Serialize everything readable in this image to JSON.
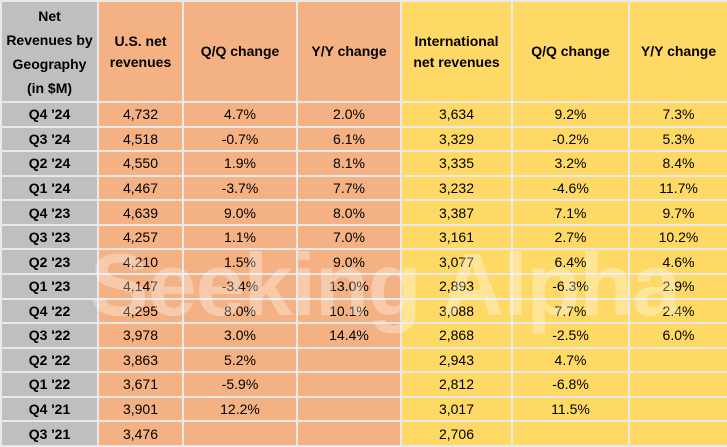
{
  "chart_data": {
    "type": "table",
    "title": "Net\nRevenues by\nGeography\n(in $M)",
    "columns": {
      "us_revenues": "U.S. net revenues",
      "us_qq": "Q/Q change",
      "us_yy": "Y/Y change",
      "intl_revenues": "International net revenues",
      "intl_qq": "Q/Q change",
      "intl_yy": "Y/Y change"
    },
    "rows": [
      {
        "quarter": "Q4 '24",
        "us_rev": "4,732",
        "us_qq": "4.7%",
        "us_yy": "2.0%",
        "intl_rev": "3,634",
        "intl_qq": "9.2%",
        "intl_yy": "7.3%"
      },
      {
        "quarter": "Q3 '24",
        "us_rev": "4,518",
        "us_qq": "-0.7%",
        "us_yy": "6.1%",
        "intl_rev": "3,329",
        "intl_qq": "-0.2%",
        "intl_yy": "5.3%"
      },
      {
        "quarter": "Q2 '24",
        "us_rev": "4,550",
        "us_qq": "1.9%",
        "us_yy": "8.1%",
        "intl_rev": "3,335",
        "intl_qq": "3.2%",
        "intl_yy": "8.4%"
      },
      {
        "quarter": "Q1 '24",
        "us_rev": "4,467",
        "us_qq": "-3.7%",
        "us_yy": "7.7%",
        "intl_rev": "3,232",
        "intl_qq": "-4.6%",
        "intl_yy": "11.7%"
      },
      {
        "quarter": "Q4 '23",
        "us_rev": "4,639",
        "us_qq": "9.0%",
        "us_yy": "8.0%",
        "intl_rev": "3,387",
        "intl_qq": "7.1%",
        "intl_yy": "9.7%"
      },
      {
        "quarter": "Q3 '23",
        "us_rev": "4,257",
        "us_qq": "1.1%",
        "us_yy": "7.0%",
        "intl_rev": "3,161",
        "intl_qq": "2.7%",
        "intl_yy": "10.2%"
      },
      {
        "quarter": "Q2 '23",
        "us_rev": "4,210",
        "us_qq": "1.5%",
        "us_yy": "9.0%",
        "intl_rev": "3,077",
        "intl_qq": "6.4%",
        "intl_yy": "4.6%"
      },
      {
        "quarter": "Q1 '23",
        "us_rev": "4,147",
        "us_qq": "-3.4%",
        "us_yy": "13.0%",
        "intl_rev": "2,893",
        "intl_qq": "-6.3%",
        "intl_yy": "2.9%"
      },
      {
        "quarter": "Q4 '22",
        "us_rev": "4,295",
        "us_qq": "8.0%",
        "us_yy": "10.1%",
        "intl_rev": "3,088",
        "intl_qq": "7.7%",
        "intl_yy": "2.4%"
      },
      {
        "quarter": "Q3 '22",
        "us_rev": "3,978",
        "us_qq": "3.0%",
        "us_yy": "14.4%",
        "intl_rev": "2,868",
        "intl_qq": "-2.5%",
        "intl_yy": "6.0%"
      },
      {
        "quarter": "Q2 '22",
        "us_rev": "3,863",
        "us_qq": "5.2%",
        "us_yy": "",
        "intl_rev": "2,943",
        "intl_qq": "4.7%",
        "intl_yy": ""
      },
      {
        "quarter": "Q1 '22",
        "us_rev": "3,671",
        "us_qq": "-5.9%",
        "us_yy": "",
        "intl_rev": "2,812",
        "intl_qq": "-6.8%",
        "intl_yy": ""
      },
      {
        "quarter": "Q4 '21",
        "us_rev": "3,901",
        "us_qq": "12.2%",
        "us_yy": "",
        "intl_rev": "3,017",
        "intl_qq": "11.5%",
        "intl_yy": ""
      },
      {
        "quarter": "Q3 '21",
        "us_rev": "3,476",
        "us_qq": "",
        "us_yy": "",
        "intl_rev": "2,706",
        "intl_qq": "",
        "intl_yy": ""
      }
    ],
    "layout_hints": {
      "sections": [
        "U.S.",
        "International"
      ],
      "grid": "on"
    }
  },
  "watermark": {
    "text": "Seeking Alpha"
  },
  "colors": {
    "row_header_bg": "#bfbfbf",
    "us_section_bg": "#f4b183",
    "intl_section_bg": "#ffd966",
    "gridline": "#e9e9e9",
    "text": "#000000"
  }
}
